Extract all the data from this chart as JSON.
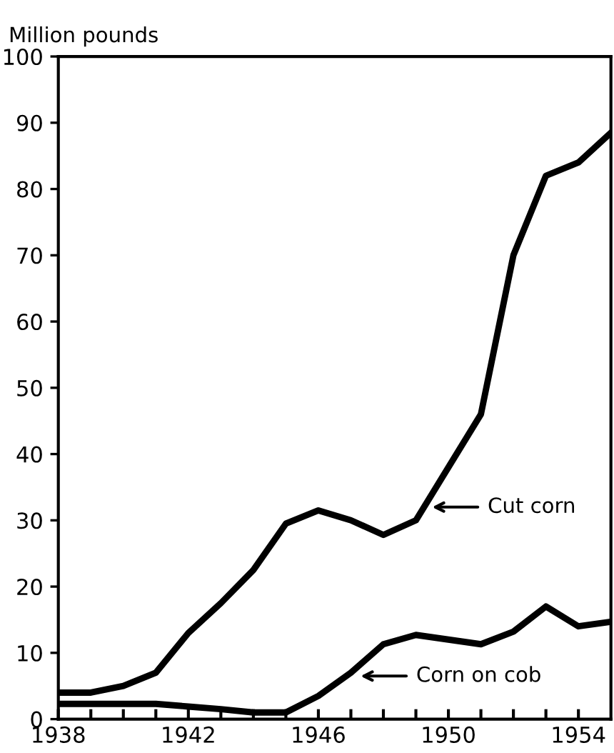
{
  "chart_data": {
    "type": "line",
    "ylabel": "Million pounds",
    "x": [
      1938,
      1939,
      1940,
      1941,
      1942,
      1943,
      1944,
      1945,
      1946,
      1947,
      1948,
      1949,
      1950,
      1951,
      1952,
      1953,
      1954,
      1955
    ],
    "series": [
      {
        "name": "Cut corn",
        "color": "#000000",
        "values": [
          4,
          4,
          5,
          7,
          13,
          17.5,
          22.5,
          29.5,
          31.5,
          30,
          27.8,
          30,
          38,
          46,
          70,
          82,
          84,
          88.5
        ]
      },
      {
        "name": "Corn on cob",
        "color": "#000000",
        "values": [
          2.3,
          2.3,
          2.3,
          2.3,
          1.9,
          1.5,
          1,
          1,
          3.5,
          7,
          11.3,
          12.7,
          12,
          11.3,
          13.2,
          17,
          14,
          14.7
        ]
      }
    ],
    "xlim": [
      1938,
      1955
    ],
    "ylim": [
      0,
      100
    ],
    "xticks": [
      1938,
      {
        "value": 1939,
        "label": null
      },
      {
        "value": 1940,
        "label": null
      },
      {
        "value": 1941,
        "label": null
      },
      1942,
      {
        "value": 1943,
        "label": null
      },
      {
        "value": 1944,
        "label": null
      },
      {
        "value": 1945,
        "label": null
      },
      1946,
      {
        "value": 1947,
        "label": null
      },
      {
        "value": 1948,
        "label": null
      },
      {
        "value": 1949,
        "label": null
      },
      1950,
      {
        "value": 1951,
        "label": null
      },
      {
        "value": 1952,
        "label": null
      },
      {
        "value": 1953,
        "label": null
      },
      1954
    ],
    "yticks": [
      0,
      10,
      20,
      30,
      40,
      50,
      60,
      70,
      80,
      90,
      100
    ],
    "grid": false,
    "legend": "bottom right",
    "marker": "none",
    "line_style": "solid"
  }
}
